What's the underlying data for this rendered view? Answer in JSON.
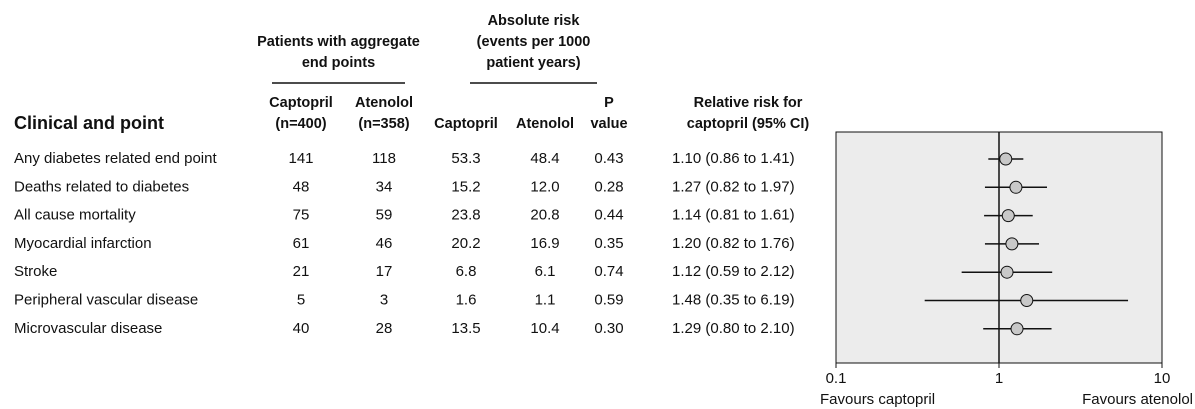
{
  "chart_data": {
    "type": "forest",
    "group_headers": [
      {
        "lines": [
          "Patients with aggregate",
          "end points"
        ]
      },
      {
        "lines": [
          "Absolute risk",
          "(events per 1000",
          "patient years)"
        ]
      }
    ],
    "label_header": "Clinical and point",
    "categories": [
      "Any diabetes related end point",
      "Deaths related to diabetes",
      "All cause mortality",
      "Myocardial infarction",
      "Stroke",
      "Peripheral vascular disease",
      "Microvascular disease"
    ],
    "columns": [
      {
        "header": [
          "Captopril",
          "(n=400)"
        ],
        "cells": [
          "141",
          "48",
          "75",
          "61",
          "21",
          "5",
          "40"
        ]
      },
      {
        "header": [
          "Atenolol",
          "(n=358)"
        ],
        "cells": [
          "118",
          "34",
          "59",
          "46",
          "17",
          "3",
          "28"
        ]
      },
      {
        "header": [
          "Captopril"
        ],
        "cells": [
          "53.3",
          "15.2",
          "23.8",
          "20.2",
          "6.8",
          "1.6",
          "13.5"
        ]
      },
      {
        "header": [
          "Atenolol"
        ],
        "cells": [
          "48.4",
          "12.0",
          "20.8",
          "16.9",
          "6.1",
          "1.1",
          "10.4"
        ]
      },
      {
        "header": [
          "P",
          "value"
        ],
        "cells": [
          "0.43",
          "0.28",
          "0.44",
          "0.35",
          "0.74",
          "0.59",
          "0.30"
        ]
      }
    ],
    "estimate_header": [
      "Relative risk for",
      "captopril (95% CI)"
    ],
    "values": [
      1.1,
      1.27,
      1.14,
      1.2,
      1.12,
      1.48,
      1.29
    ],
    "lower": [
      0.86,
      0.82,
      0.81,
      0.82,
      0.59,
      0.35,
      0.8
    ],
    "upper": [
      1.41,
      1.97,
      1.61,
      1.76,
      2.12,
      6.19,
      2.1
    ],
    "value_labels": [
      "1.10 (0.86 to 1.41)",
      "1.27 (0.82 to 1.97)",
      "1.14 (0.81 to 1.61)",
      "1.20 (0.82 to 1.76)",
      "1.12 (0.59 to 2.12)",
      "1.48 (0.35 to 6.19)",
      "1.29 (0.80 to 2.10)"
    ],
    "log_scale": true,
    "xlim": [
      0.1,
      10
    ],
    "xticks": [
      0.1,
      1,
      10
    ],
    "reference_line": 1,
    "x_labels": [
      "Favours captopril",
      "Favours atenolol"
    ],
    "marker_color": "#c8c8c8",
    "plot_background": "#ececec"
  }
}
